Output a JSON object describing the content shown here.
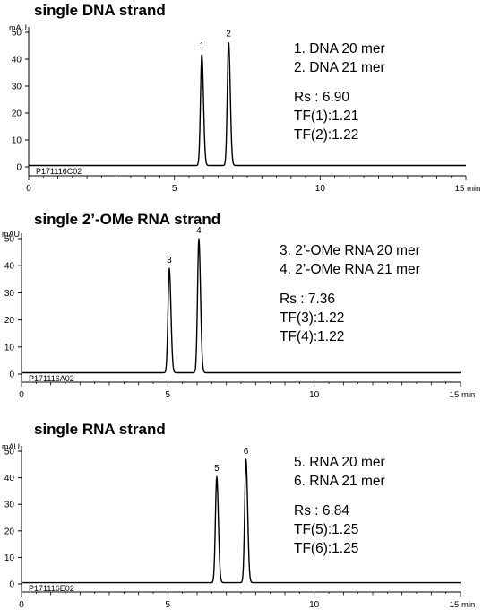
{
  "chart_data": [
    {
      "type": "line",
      "title": "single DNA  strand",
      "ylabel": "mAU",
      "xlabel": "min",
      "x_unit_label": "15 min",
      "xlim": [
        0,
        15
      ],
      "ylim": [
        0,
        55
      ],
      "xticks": [
        0,
        5,
        10
      ],
      "yticks": [
        0,
        10,
        20,
        30,
        40,
        50
      ],
      "sample_id": "P171116C02",
      "baseline": 0.5,
      "peaks": [
        {
          "label": "1",
          "rt": 5.94,
          "height": 41.5,
          "width": 0.045
        },
        {
          "label": "2",
          "rt": 6.86,
          "height": 46.0,
          "width": 0.045
        }
      ],
      "legend": [
        "1. DNA 20 mer",
        "2. DNA 21 mer"
      ],
      "stats": [
        "Rs : 6.90",
        "TF(1):1.21",
        "TF(2):1.22"
      ]
    },
    {
      "type": "line",
      "title": "single 2’-OMe RNA strand",
      "ylabel": "mAU",
      "xlabel": "min",
      "x_unit_label": "15 min",
      "xlim": [
        0,
        15
      ],
      "ylim": [
        0,
        55
      ],
      "xticks": [
        0,
        5,
        10
      ],
      "yticks": [
        0,
        10,
        20,
        30,
        40,
        50
      ],
      "sample_id": "P171116A02",
      "baseline": 0.5,
      "peaks": [
        {
          "label": "3",
          "rt": 5.05,
          "height": 38.5,
          "width": 0.045
        },
        {
          "label": "4",
          "rt": 6.06,
          "height": 49.5,
          "width": 0.045
        }
      ],
      "legend": [
        "3. 2’-OMe RNA 20 mer",
        "4. 2’-OMe RNA 21 mer"
      ],
      "stats": [
        "Rs : 7.36",
        "TF(3):1.22",
        "TF(4):1.22"
      ]
    },
    {
      "type": "line",
      "title": "single RNA strand",
      "ylabel": "mAU",
      "xlabel": "min",
      "x_unit_label": "15 min",
      "xlim": [
        0,
        15
      ],
      "ylim": [
        0,
        55
      ],
      "xticks": [
        0,
        5,
        10
      ],
      "yticks": [
        0,
        10,
        20,
        30,
        40,
        50
      ],
      "sample_id": "P171116E02",
      "baseline": 0.5,
      "peaks": [
        {
          "label": "5",
          "rt": 6.67,
          "height": 40.0,
          "width": 0.045
        },
        {
          "label": "6",
          "rt": 7.67,
          "height": 46.5,
          "width": 0.045
        }
      ],
      "legend": [
        "5. RNA 20 mer",
        "6. RNA 21 mer"
      ],
      "stats": [
        "Rs : 6.84",
        "TF(5):1.25",
        "TF(6):1.25"
      ]
    }
  ]
}
